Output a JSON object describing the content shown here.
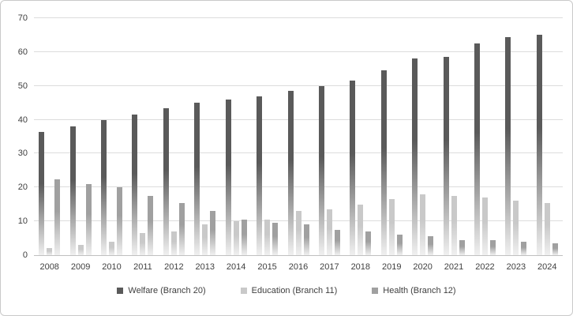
{
  "chart_data": {
    "type": "bar",
    "title": "",
    "categories": [
      "2008",
      "2009",
      "2010",
      "2011",
      "2012",
      "2013",
      "2014",
      "2015",
      "2016",
      "2017",
      "2018",
      "2019",
      "2020",
      "2021",
      "2022",
      "2023",
      "2024"
    ],
    "series": [
      {
        "key": "welfare",
        "name": "Welfare (Branch 20)",
        "color": "#5a5a5a",
        "values": [
          36.5,
          38,
          40,
          41.5,
          43.5,
          45,
          46,
          47,
          48.5,
          50,
          51.5,
          54.5,
          58,
          58.5,
          62.5,
          64.5,
          65
        ]
      },
      {
        "key": "education",
        "name": "Education (Branch 11)",
        "color": "#c9c9c9",
        "values": [
          2,
          3,
          4,
          6.5,
          7,
          9,
          10,
          10.5,
          13,
          13.5,
          15,
          16.5,
          18,
          17.5,
          17,
          16,
          15.5
        ]
      },
      {
        "key": "health",
        "name": "Health (Branch 12)",
        "color": "#a0a0a0",
        "values": [
          22.5,
          21,
          20,
          17.5,
          15.5,
          13,
          10.5,
          9.5,
          9,
          7.5,
          7,
          6,
          5.5,
          4.5,
          4.5,
          4,
          3.5
        ]
      }
    ],
    "xlabel": "",
    "ylabel": "",
    "ylim": [
      0,
      70
    ],
    "yticks": [
      0,
      10,
      20,
      30,
      40,
      50,
      60,
      70
    ],
    "grid": true,
    "legend_position": "bottom",
    "bar_fade_bottom_color": "#f0f0f0",
    "gridline_color": "#dcdcdc",
    "axis_line_color": "#c0c0c0",
    "text_color": "#3f3f3f"
  }
}
